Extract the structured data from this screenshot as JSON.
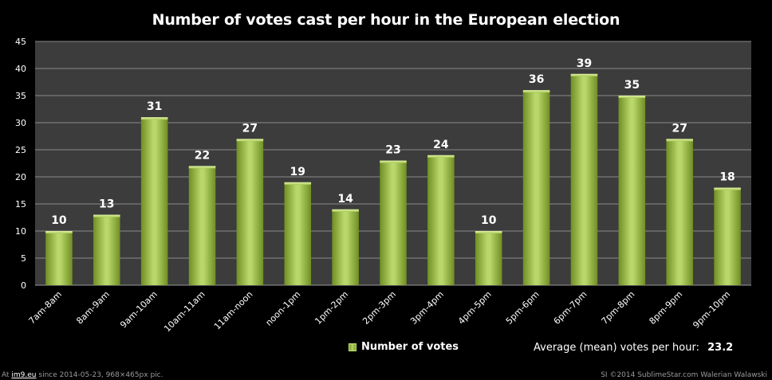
{
  "chart_data": {
    "type": "bar",
    "title": "Number of votes cast per hour in the European election",
    "categories": [
      "7am-8am",
      "8am-9am",
      "9am-10am",
      "10am-11am",
      "11am-noon",
      "noon-1pm",
      "1pm-2pm",
      "2pm-3pm",
      "3pm-4pm",
      "4pm-5pm",
      "5pm-6pm",
      "6pm-7pm",
      "7pm-8pm",
      "8pm-9pm",
      "9pm-10pm"
    ],
    "series": [
      {
        "name": "Number of votes",
        "values": [
          10,
          13,
          31,
          22,
          27,
          19,
          14,
          23,
          24,
          10,
          36,
          39,
          35,
          27,
          18
        ]
      }
    ],
    "ylim": [
      0,
      45
    ],
    "yticks": [
      0,
      5,
      10,
      15,
      20,
      25,
      30,
      35,
      40,
      45
    ],
    "grid": true,
    "data_labels": true,
    "legend_position": "bottom",
    "annotation": {
      "label": "Average (mean) votes per hour:",
      "value": "23.2"
    }
  },
  "colors": {
    "background": "#000000",
    "plot_area": "#3c3c3c",
    "gridline": "#8a8a8a",
    "bar_light": "#b9d76a",
    "bar_dark": "#6f8f24",
    "text": "#ffffff"
  },
  "footer": {
    "prefix": "At",
    "site": "im9.eu",
    "suffix": "since 2014-05-23, 968×465px pic.",
    "credit": "SI ©2014 SublimeStar.com Walerian Walawski"
  }
}
